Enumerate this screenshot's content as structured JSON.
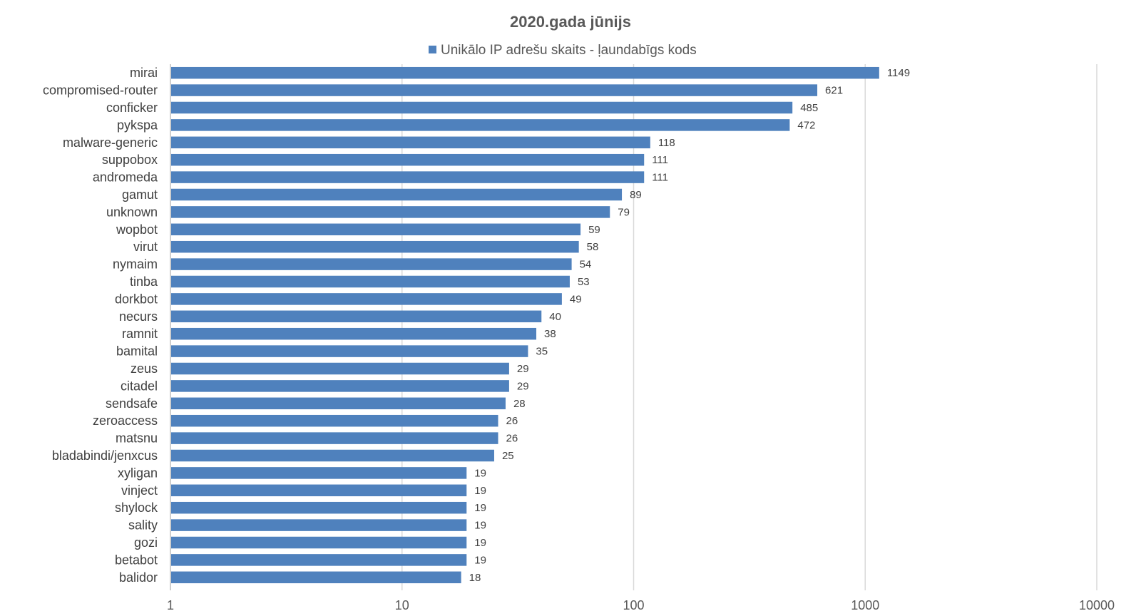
{
  "chart_data": {
    "type": "bar",
    "orientation": "horizontal",
    "title": "2020.gada jūnijs",
    "legend_position": "top",
    "x_scale": "log",
    "xlim": [
      1,
      10000
    ],
    "x_ticks": [
      "1",
      "10",
      "100",
      "1000",
      "10000"
    ],
    "grid": true,
    "bar_color": "#4f81bd",
    "series": [
      {
        "name": "Unikālo IP adrešu skaits -  ļaundabīgs kods",
        "values": [
          1149,
          621,
          485,
          472,
          118,
          111,
          111,
          89,
          79,
          59,
          58,
          54,
          53,
          49,
          40,
          38,
          35,
          29,
          29,
          28,
          26,
          26,
          25,
          19,
          19,
          19,
          19,
          19,
          19,
          18
        ]
      }
    ],
    "categories": [
      "mirai",
      "compromised-router",
      "conficker",
      "pykspa",
      "malware-generic",
      "suppobox",
      "andromeda",
      "gamut",
      "unknown",
      "wopbot",
      "virut",
      "nymaim",
      "tinba",
      "dorkbot",
      "necurs",
      "ramnit",
      "bamital",
      "zeus",
      "citadel",
      "sendsafe",
      "zeroaccess",
      "matsnu",
      "bladabindi/jenxcus",
      "xyligan",
      "vinject",
      "shylock",
      "sality",
      "gozi",
      "betabot",
      "balidor"
    ]
  }
}
